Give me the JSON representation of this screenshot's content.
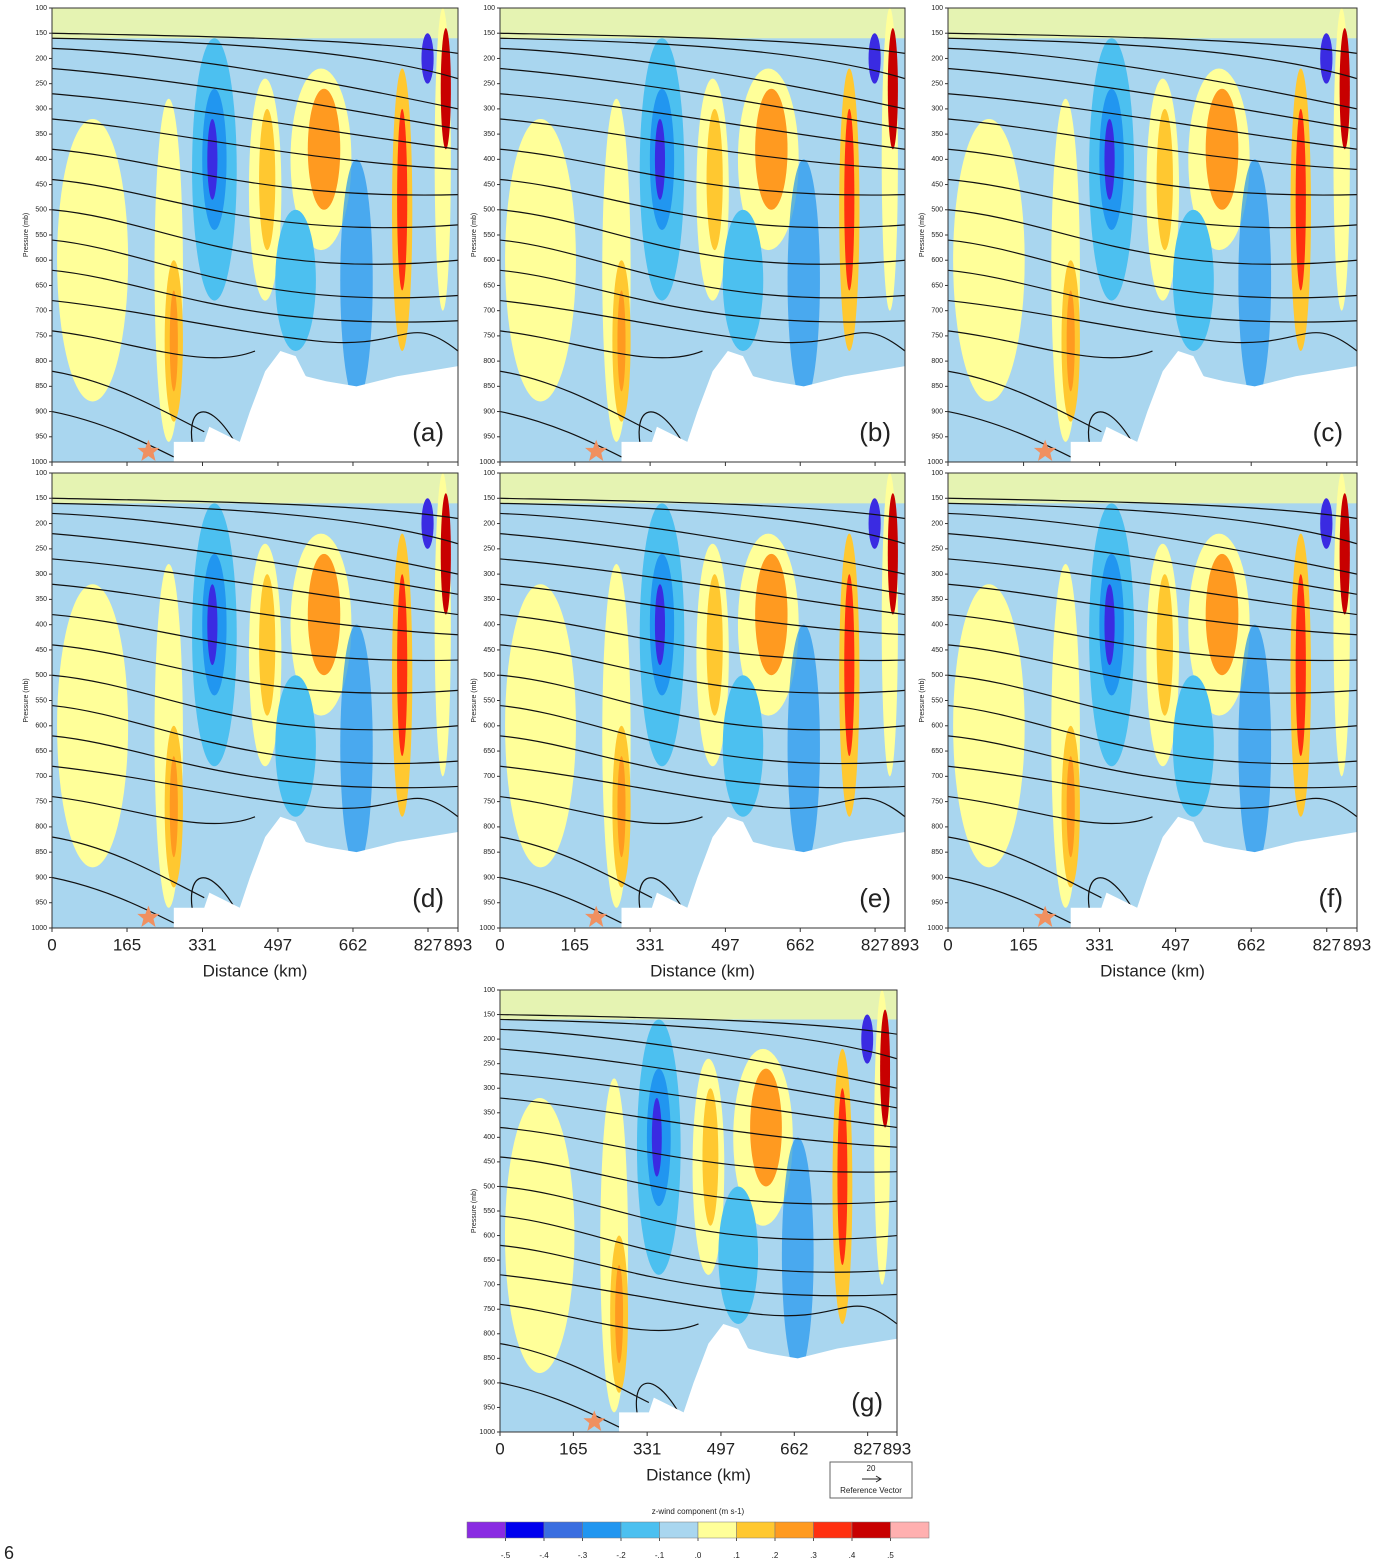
{
  "chart_data": {
    "type": "contour",
    "panels": [
      "(a)",
      "(b)",
      "(c)",
      "(d)",
      "(e)",
      "(f)",
      "(g)"
    ],
    "ylabel": "Pressure (mb)",
    "xlabel": "Distance (km)",
    "xlim": [
      0,
      893
    ],
    "xticks": [
      0,
      165,
      331,
      497,
      662,
      827,
      893
    ],
    "ylim": [
      1000,
      100
    ],
    "yticks": [
      100,
      150,
      200,
      250,
      300,
      350,
      400,
      450,
      500,
      550,
      600,
      650,
      700,
      750,
      800,
      850,
      900,
      950,
      1000
    ],
    "colorbar": {
      "title": "z-wind component (m s-1)",
      "colors": [
        "#8a2be2",
        "#0000ee",
        "#3a6ee0",
        "#2196f0",
        "#4cc0f0",
        "#a9d6ef",
        "#ffff99",
        "#ffc830",
        "#ff9a20",
        "#ff3010",
        "#c80000",
        "#ffb0b0"
      ],
      "clim": [
        -0.6,
        0.6
      ],
      "ticks": [
        {
          "value": -0.5,
          "label": "-.5"
        },
        {
          "value": -0.4,
          "label": "-.4"
        },
        {
          "value": -0.3,
          "label": "-.3"
        },
        {
          "value": -0.2,
          "label": "-.2"
        },
        {
          "value": -0.1,
          "label": "-.1"
        },
        {
          "value": 0,
          "label": ".0"
        },
        {
          "value": 0.1,
          "label": ".1"
        },
        {
          "value": 0.2,
          "label": ".2"
        },
        {
          "value": 0.3,
          "label": ".3"
        },
        {
          "value": 0.4,
          "label": ".4"
        },
        {
          "value": 0.5,
          "label": ".5"
        }
      ]
    },
    "reference_vector": {
      "value": 20,
      "label": "Reference Vector"
    },
    "page_number": 6
  }
}
